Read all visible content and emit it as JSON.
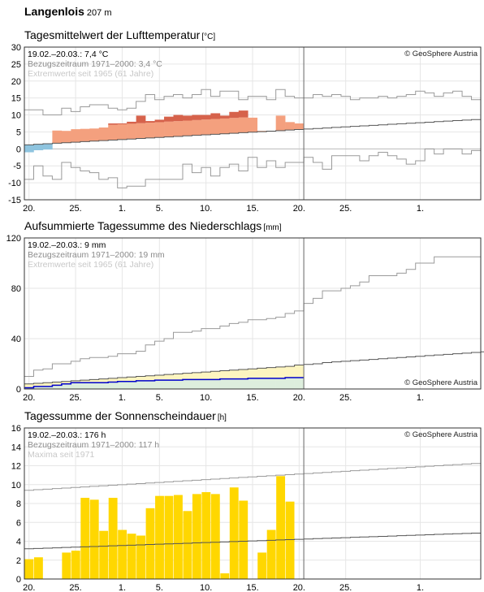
{
  "header": {
    "station": "Langenlois",
    "elevation": "207 m"
  },
  "x_ticks": [
    "20.",
    "25.",
    "1.",
    "5.",
    "10.",
    "15.",
    "20.",
    "25.",
    "1."
  ],
  "chart_data": [
    {
      "type": "bar",
      "id": "temp",
      "title": "Tagesmittelwert der Lufttemperatur",
      "unit": "[°C]",
      "info_lines": [
        "19.02.–20.03.: 7,4 °C",
        "Bezugszeitraum 1971–2000: 3,4 °C",
        "Extremwerte seit 1965 (61 Jahre)"
      ],
      "copyright": "© GeoSphere Austria",
      "ylim": [
        -15,
        30
      ],
      "y_ticks": [
        "30",
        "25",
        "20",
        "15",
        "10",
        "5",
        "0",
        "-5",
        "-10",
        "-15"
      ],
      "values": [
        -1,
        -0.4,
        -0.2,
        5.4,
        5.3,
        5.8,
        5.9,
        6,
        6.3,
        7.5,
        7.5,
        8,
        9.8,
        8.2,
        8.6,
        9.5,
        10,
        9.8,
        10,
        10,
        10.5,
        9.8,
        10.9,
        11.3,
        9.2,
        5.3,
        5.3,
        9.8,
        7.9,
        7.5
      ],
      "normal_start": 1.2,
      "normal_end": 8.8,
      "max_values": [
        11.5,
        11.5,
        10,
        10,
        12,
        11,
        12.4,
        13,
        13,
        12,
        11.5,
        12,
        14,
        16,
        14.5,
        15.5,
        16,
        15,
        16,
        17.5,
        15.5,
        17,
        17,
        14.5,
        15.5,
        15.5,
        14.5,
        17.5,
        15.5,
        15,
        15,
        16,
        15.5,
        16,
        15.5,
        14.5,
        15,
        15,
        15.5,
        15,
        15.5,
        16,
        17,
        16.5,
        15.5,
        16.5,
        17,
        15.5,
        14.5
      ],
      "min_values": [
        -9,
        -5,
        -8,
        -9,
        -4,
        -5.5,
        -6.5,
        -7,
        -9,
        -8.5,
        -11.5,
        -11,
        -11,
        -9,
        -9,
        -9,
        -9,
        -4.5,
        -7,
        -5.5,
        -8,
        -5.5,
        -4.5,
        -6.5,
        -2.5,
        -5.5,
        -3.5,
        -5.5,
        -4,
        -4,
        -2.5,
        -4,
        -6,
        -2,
        -2,
        -2,
        -3.5,
        -2,
        -1,
        -2,
        -3,
        -4.5,
        -3.5,
        0,
        -1.5,
        0,
        0,
        -1.5,
        -0.5
      ],
      "colors": {
        "above": "#f4a07e",
        "above_dark": "#d6624b",
        "below": "#8ec4df"
      }
    },
    {
      "type": "area",
      "id": "precip",
      "title": "Aufsummierte Tagessumme des Niederschlags",
      "unit": "[mm]",
      "info_lines": [
        "19.02.–20.03.: 9 mm",
        "Bezugszeitraum 1971–2000: 19 mm",
        "Extremwerte seit 1965 (61 Jahre)"
      ],
      "copyright": "© GeoSphere Austria",
      "ylim": [
        0,
        120
      ],
      "y_ticks": [
        "120",
        "80",
        "40",
        "0"
      ],
      "cumulative": [
        1,
        2,
        2,
        3,
        4,
        5,
        5,
        5,
        5,
        5.5,
        6,
        6,
        6.5,
        6.5,
        7,
        7,
        7,
        7.5,
        7.5,
        7.5,
        7.5,
        8,
        8,
        8,
        8.5,
        8.5,
        8.5,
        8.5,
        9,
        9
      ],
      "normal_cumulative": [
        4,
        4.5,
        5,
        5.5,
        6,
        6.5,
        7,
        7.5,
        8,
        8.5,
        9,
        9.5,
        10,
        10.5,
        11,
        11.5,
        12,
        12.5,
        13,
        13.5,
        14,
        14.5,
        15,
        15.5,
        16,
        16.5,
        17,
        17.5,
        18,
        19
      ],
      "normal_extension": [
        19,
        19.5,
        20,
        21,
        21.5,
        22,
        22.5,
        23,
        23.5,
        24,
        24.5,
        25,
        25.5,
        26,
        26.5,
        27,
        27.5,
        28,
        28.5,
        29,
        29.5,
        30,
        31
      ],
      "max_cumulative": [
        10,
        15,
        16,
        20,
        20,
        22,
        24,
        25,
        25,
        26,
        28,
        28,
        30,
        35,
        38,
        40,
        45,
        45,
        46,
        48,
        48,
        50,
        52,
        53,
        55,
        55,
        56,
        57,
        60,
        62,
        68,
        72,
        78,
        78,
        80,
        82,
        85,
        90,
        90,
        90,
        92,
        95,
        100,
        100,
        105,
        105,
        105,
        105,
        105
      ],
      "colors": {
        "fill": "#fdf5c0",
        "fill_normal": "#ddeedd",
        "line": "#0000cc",
        "deficit": "#1a1acc"
      }
    },
    {
      "type": "bar",
      "id": "sun",
      "title": "Tagessumme der Sonnenscheindauer",
      "unit": "[h]",
      "info_lines": [
        "19.02.–20.03.: 176 h",
        "Bezugszeitraum 1971–2000: 117 h",
        "Maxima seit 1971"
      ],
      "copyright": "© GeoSphere Austria",
      "ylim": [
        0,
        16
      ],
      "y_ticks": [
        "16",
        "14",
        "12",
        "10",
        "8",
        "6",
        "4",
        "2",
        "0"
      ],
      "values": [
        2.1,
        2.3,
        0,
        0,
        2.8,
        3,
        8.6,
        8.4,
        5.1,
        8.6,
        5.2,
        4.8,
        4.6,
        7.5,
        8.8,
        8.8,
        8.9,
        7.2,
        9,
        9.2,
        9,
        0.6,
        9.7,
        8.3,
        0,
        2.8,
        5.2,
        10.9,
        8.2
      ],
      "normal_start": 3.2,
      "normal_end": 4.9,
      "max_start": 9.4,
      "max_end": 12.3,
      "colors": {
        "bar": "#ffd700"
      }
    }
  ]
}
